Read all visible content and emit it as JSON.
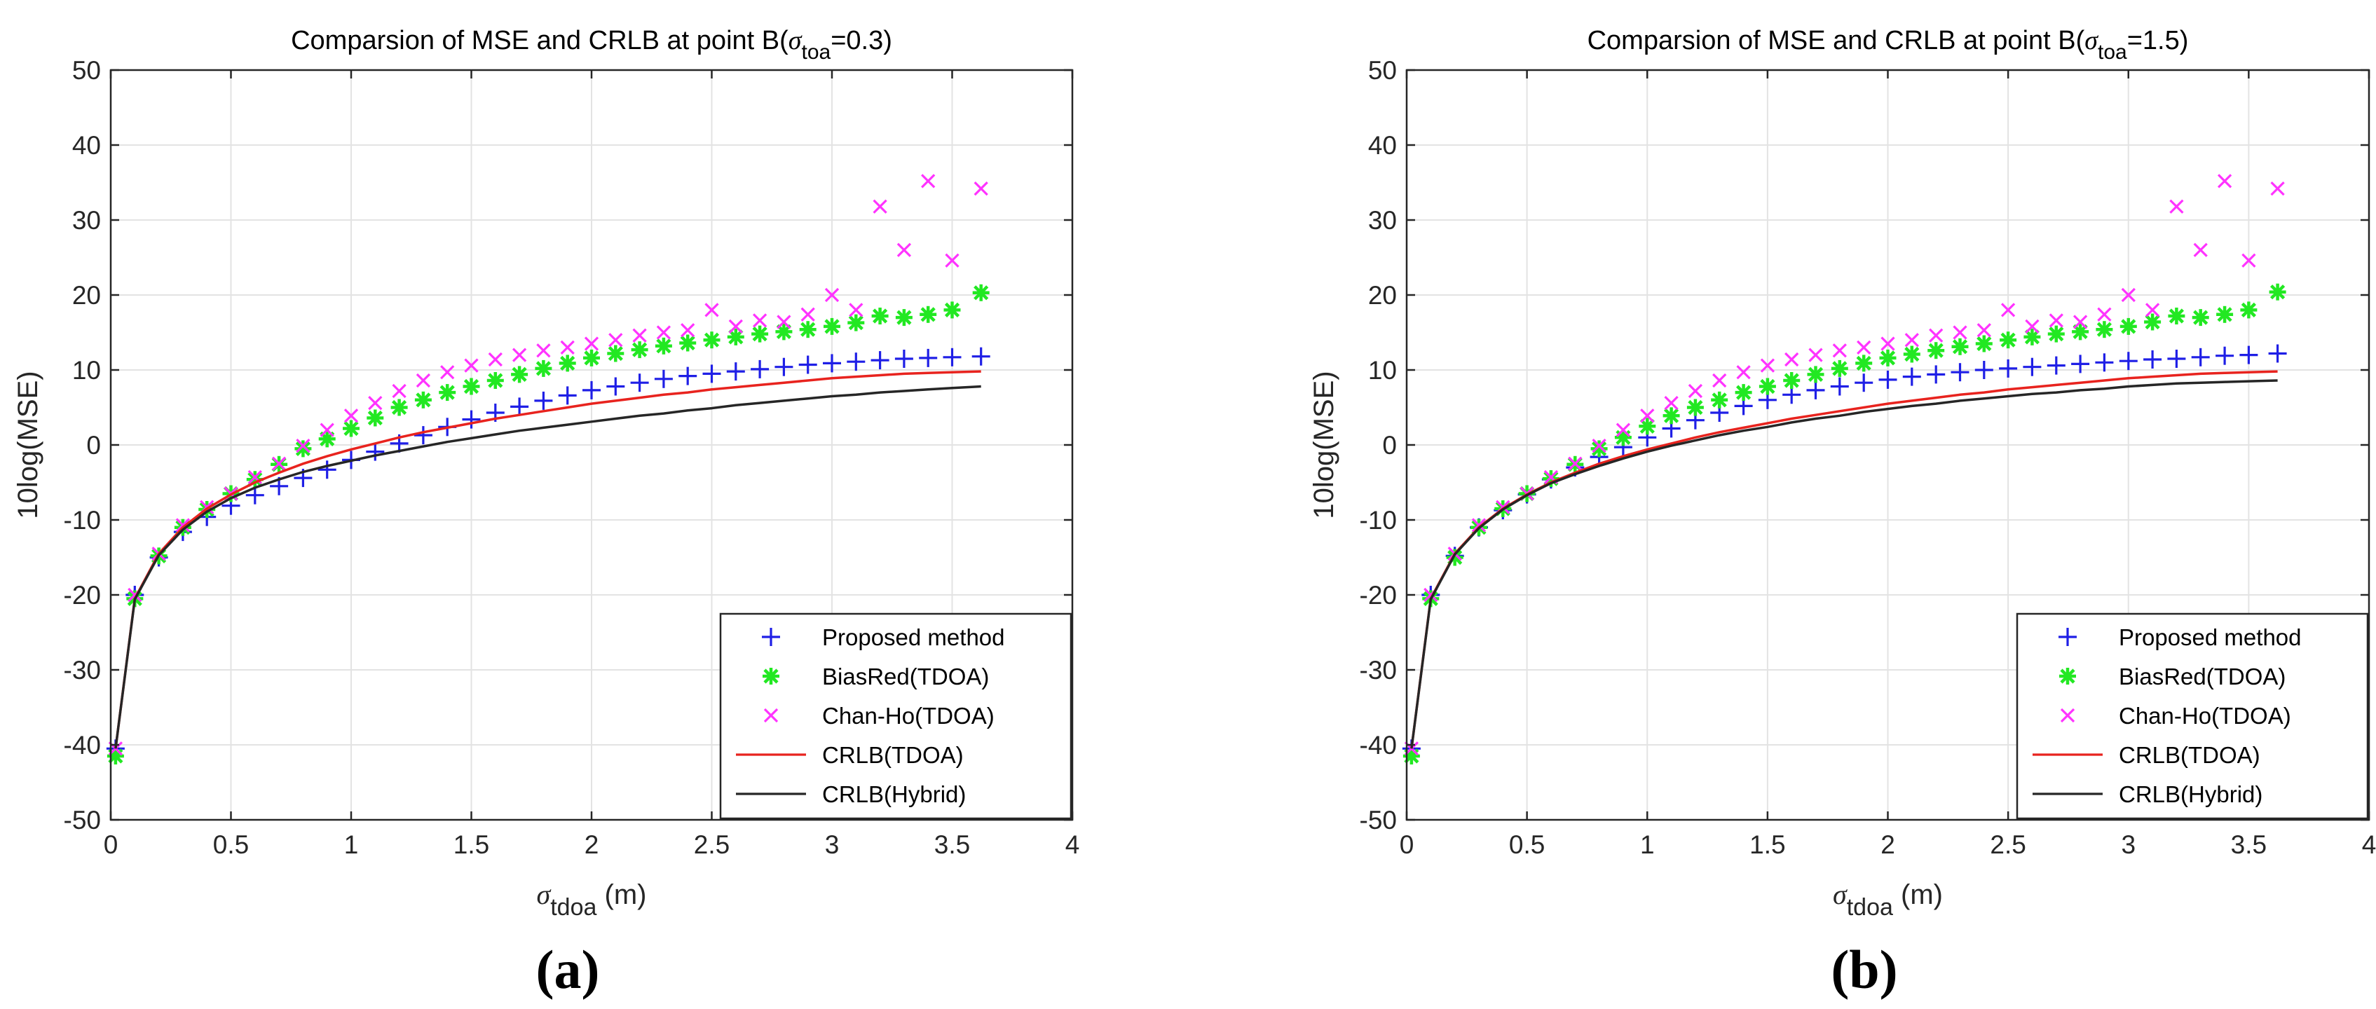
{
  "figure": {
    "panel_labels": [
      "(a)",
      "(b)"
    ]
  },
  "chart_data": [
    {
      "type": "line",
      "panel": "(a)",
      "title_prefix": "Comparsion of MSE and CRLB at point B(",
      "title_symbol": "σ",
      "title_subscript": "toa",
      "title_suffix": "=0.3)",
      "xlabel_symbol": "σ",
      "xlabel_subscript": "tdoa",
      "xlabel_suffix": " (m)",
      "ylabel": "10log(MSE)",
      "xlim": [
        0,
        4
      ],
      "ylim": [
        -50,
        50
      ],
      "xticks": [
        0,
        0.5,
        1,
        1.5,
        2,
        2.5,
        3,
        3.5,
        4
      ],
      "xtick_labels": [
        "0",
        "0.5",
        "1",
        "1.5",
        "2",
        "2.5",
        "3",
        "3.5",
        "4"
      ],
      "yticks": [
        -50,
        -40,
        -30,
        -20,
        -10,
        0,
        10,
        20,
        30,
        40,
        50
      ],
      "ytick_labels": [
        "-50",
        "-40",
        "-30",
        "-20",
        "-10",
        "0",
        "10",
        "20",
        "30",
        "40",
        "50"
      ],
      "grid": true,
      "legend_position": "bottom-right",
      "x": [
        0.02,
        0.1,
        0.2,
        0.3,
        0.4,
        0.5,
        0.6,
        0.7,
        0.8,
        0.9,
        1.0,
        1.1,
        1.2,
        1.3,
        1.4,
        1.5,
        1.6,
        1.7,
        1.8,
        1.9,
        2.0,
        2.1,
        2.2,
        2.3,
        2.4,
        2.5,
        2.6,
        2.7,
        2.8,
        2.9,
        3.0,
        3.1,
        3.2,
        3.3,
        3.4,
        3.5,
        3.62
      ],
      "series": [
        {
          "name": "Proposed method",
          "style": "plus",
          "color": "#1f1fe6",
          "values": [
            -40.5,
            -20.0,
            -15.0,
            -11.6,
            -9.6,
            -8.1,
            -6.7,
            -5.5,
            -4.4,
            -3.3,
            -2.0,
            -0.9,
            0.2,
            1.3,
            2.4,
            3.4,
            4.3,
            5.1,
            5.9,
            6.6,
            7.3,
            7.8,
            8.3,
            8.8,
            9.2,
            9.5,
            9.8,
            10.1,
            10.4,
            10.7,
            10.9,
            11.1,
            11.3,
            11.5,
            11.6,
            11.7,
            11.8
          ]
        },
        {
          "name": "BiasRed(TDOA)",
          "style": "asterisk",
          "color": "#22e822",
          "values": [
            -41.5,
            -20.5,
            -14.8,
            -11.0,
            -8.6,
            -6.5,
            -4.6,
            -2.6,
            -0.5,
            0.8,
            2.2,
            3.6,
            5.0,
            6.0,
            7.0,
            7.8,
            8.6,
            9.4,
            10.2,
            10.9,
            11.6,
            12.2,
            12.7,
            13.2,
            13.6,
            14.0,
            14.4,
            14.8,
            15.1,
            15.4,
            15.8,
            16.3,
            17.2,
            17.0,
            17.4,
            18.0,
            20.3
          ]
        },
        {
          "name": "Chan-Ho(TDOA)",
          "style": "cross",
          "color": "#ff33ff",
          "values": [
            -40.5,
            -20.0,
            -14.5,
            -10.7,
            -8.3,
            -6.5,
            -4.3,
            -2.5,
            -0.1,
            2.0,
            3.9,
            5.6,
            7.2,
            8.6,
            9.7,
            10.6,
            11.4,
            12.0,
            12.6,
            13.0,
            13.5,
            14.0,
            14.6,
            15.0,
            15.3,
            18.0,
            15.8,
            16.6,
            16.4,
            17.4,
            20.0,
            18.0,
            31.8,
            26.0,
            35.2,
            24.6,
            34.2
          ]
        },
        {
          "name": "CRLB(TDOA)",
          "style": "line",
          "color": "#e8231e",
          "values": [
            -40.5,
            -20.5,
            -14.5,
            -11.0,
            -8.5,
            -6.6,
            -5.0,
            -3.7,
            -2.5,
            -1.5,
            -0.6,
            0.2,
            1.0,
            1.7,
            2.3,
            2.9,
            3.5,
            4.0,
            4.5,
            5.0,
            5.5,
            5.9,
            6.3,
            6.7,
            7.0,
            7.4,
            7.7,
            8.0,
            8.3,
            8.6,
            8.9,
            9.1,
            9.3,
            9.5,
            9.6,
            9.7,
            9.8
          ]
        },
        {
          "name": "CRLB(Hybrid)",
          "style": "line",
          "color": "#262626",
          "values": [
            -40.5,
            -20.6,
            -14.7,
            -11.3,
            -8.9,
            -7.1,
            -5.7,
            -4.6,
            -3.6,
            -2.8,
            -2.1,
            -1.4,
            -0.8,
            -0.2,
            0.4,
            0.9,
            1.4,
            1.9,
            2.3,
            2.7,
            3.1,
            3.5,
            3.9,
            4.2,
            4.6,
            4.9,
            5.3,
            5.6,
            5.9,
            6.2,
            6.5,
            6.7,
            7.0,
            7.2,
            7.4,
            7.6,
            7.8
          ]
        }
      ]
    },
    {
      "type": "line",
      "panel": "(b)",
      "title_prefix": "Comparsion of MSE and CRLB at point B(",
      "title_symbol": "σ",
      "title_subscript": "toa",
      "title_suffix": "=1.5)",
      "xlabel_symbol": "σ",
      "xlabel_subscript": "tdoa",
      "xlabel_suffix": " (m)",
      "ylabel": "10log(MSE)",
      "xlim": [
        0,
        4
      ],
      "ylim": [
        -50,
        50
      ],
      "xticks": [
        0,
        0.5,
        1,
        1.5,
        2,
        2.5,
        3,
        3.5,
        4
      ],
      "xtick_labels": [
        "0",
        "0.5",
        "1",
        "1.5",
        "2",
        "2.5",
        "3",
        "3.5",
        "4"
      ],
      "yticks": [
        -50,
        -40,
        -30,
        -20,
        -10,
        0,
        10,
        20,
        30,
        40,
        50
      ],
      "ytick_labels": [
        "-50",
        "-40",
        "-30",
        "-20",
        "-10",
        "0",
        "10",
        "20",
        "30",
        "40",
        "50"
      ],
      "grid": true,
      "legend_position": "bottom-right",
      "x": [
        0.02,
        0.1,
        0.2,
        0.3,
        0.4,
        0.5,
        0.6,
        0.7,
        0.8,
        0.9,
        1.0,
        1.1,
        1.2,
        1.3,
        1.4,
        1.5,
        1.6,
        1.7,
        1.8,
        1.9,
        2.0,
        2.1,
        2.2,
        2.3,
        2.4,
        2.5,
        2.6,
        2.7,
        2.8,
        2.9,
        3.0,
        3.1,
        3.2,
        3.3,
        3.4,
        3.5,
        3.62
      ],
      "series": [
        {
          "name": "Proposed method",
          "style": "plus",
          "color": "#1f1fe6",
          "values": [
            -40.5,
            -20.0,
            -14.8,
            -11.0,
            -8.7,
            -6.6,
            -4.6,
            -3.0,
            -1.6,
            -0.3,
            1.0,
            2.2,
            3.3,
            4.3,
            5.2,
            6.0,
            6.7,
            7.3,
            7.8,
            8.3,
            8.7,
            9.1,
            9.4,
            9.7,
            10.0,
            10.2,
            10.4,
            10.6,
            10.8,
            11.0,
            11.2,
            11.4,
            11.5,
            11.7,
            11.9,
            12.0,
            12.2
          ]
        },
        {
          "name": "BiasRed(TDOA)",
          "style": "asterisk",
          "color": "#22e822",
          "values": [
            -41.5,
            -20.5,
            -15.0,
            -11.0,
            -8.5,
            -6.5,
            -4.5,
            -2.6,
            -0.5,
            1.0,
            2.5,
            3.9,
            5.0,
            6.0,
            7.0,
            7.8,
            8.6,
            9.4,
            10.2,
            10.9,
            11.6,
            12.1,
            12.6,
            13.1,
            13.5,
            14.0,
            14.4,
            14.8,
            15.1,
            15.4,
            15.8,
            16.4,
            17.2,
            17.0,
            17.4,
            18.0,
            20.4
          ]
        },
        {
          "name": "Chan-Ho(TDOA)",
          "style": "cross",
          "color": "#ff33ff",
          "values": [
            -40.5,
            -20.0,
            -14.5,
            -10.7,
            -8.3,
            -6.5,
            -4.3,
            -2.5,
            -0.1,
            2.0,
            3.9,
            5.6,
            7.2,
            8.6,
            9.7,
            10.6,
            11.4,
            12.0,
            12.6,
            13.0,
            13.5,
            14.0,
            14.6,
            15.0,
            15.3,
            18.0,
            15.8,
            16.6,
            16.4,
            17.4,
            20.0,
            18.0,
            31.8,
            26.0,
            35.2,
            24.6,
            34.2
          ]
        },
        {
          "name": "CRLB(TDOA)",
          "style": "line",
          "color": "#e8231e",
          "values": [
            -40.5,
            -20.5,
            -14.5,
            -11.0,
            -8.5,
            -6.6,
            -5.0,
            -3.7,
            -2.5,
            -1.5,
            -0.6,
            0.2,
            1.0,
            1.7,
            2.3,
            2.9,
            3.5,
            4.0,
            4.5,
            5.0,
            5.5,
            5.9,
            6.3,
            6.7,
            7.0,
            7.4,
            7.7,
            8.0,
            8.3,
            8.6,
            8.9,
            9.1,
            9.3,
            9.5,
            9.6,
            9.7,
            9.8
          ]
        },
        {
          "name": "CRLB(Hybrid)",
          "style": "line",
          "color": "#262626",
          "values": [
            -40.5,
            -20.6,
            -14.6,
            -11.1,
            -8.6,
            -6.7,
            -5.1,
            -3.9,
            -2.8,
            -1.8,
            -0.9,
            -0.1,
            0.6,
            1.3,
            1.9,
            2.4,
            3.0,
            3.5,
            3.9,
            4.4,
            4.8,
            5.2,
            5.5,
            5.9,
            6.2,
            6.5,
            6.8,
            7.0,
            7.3,
            7.5,
            7.8,
            8.0,
            8.2,
            8.3,
            8.4,
            8.5,
            8.6
          ]
        }
      ]
    }
  ]
}
